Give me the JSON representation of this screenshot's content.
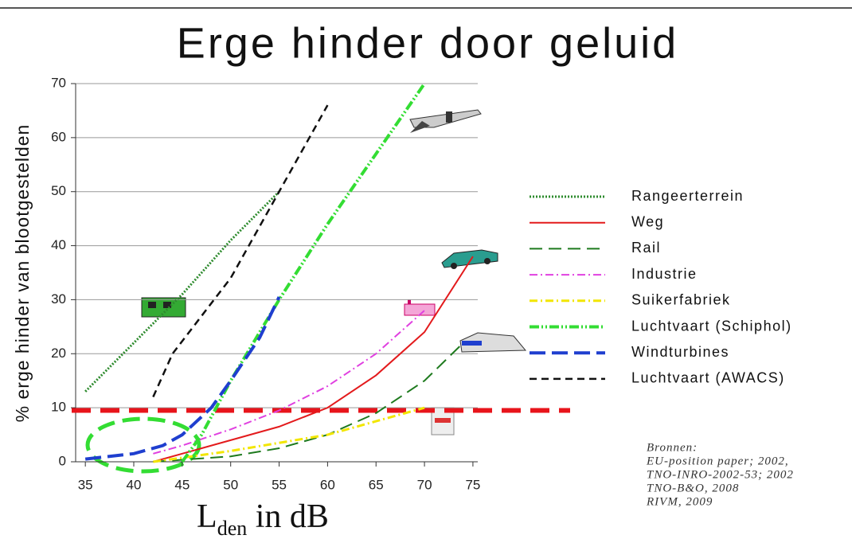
{
  "chart_data": {
    "type": "line",
    "title": "Erge hinder door geluid",
    "ylabel": "% erge hinder van blootgestelden",
    "xlabel": {
      "main": "L",
      "subscript": "den",
      "rest": " in dB"
    },
    "xlim": [
      34,
      75.5
    ],
    "ylim": [
      0,
      70
    ],
    "xticks": [
      35,
      40,
      45,
      50,
      55,
      60,
      65,
      70,
      75
    ],
    "yticks": [
      0,
      10,
      20,
      30,
      40,
      50,
      60,
      70
    ],
    "grid": true,
    "reference_line": {
      "value": 9.5,
      "color": "#e8141b"
    },
    "series": [
      {
        "name": "Rangeerterrein",
        "color": "#2e8b2e",
        "x": [
          35,
          40,
          45,
          50,
          55
        ],
        "values": [
          13,
          22,
          31,
          41,
          50
        ]
      },
      {
        "name": "Weg",
        "color": "#e31a1c",
        "x": [
          42,
          45,
          50,
          55,
          60,
          65,
          70,
          75
        ],
        "values": [
          0,
          1.5,
          4,
          6.5,
          10,
          16,
          24,
          38
        ]
      },
      {
        "name": "Rail",
        "color": "#1e7a1e",
        "x": [
          42,
          50,
          55,
          60,
          65,
          70,
          74
        ],
        "values": [
          0,
          1,
          2.5,
          5,
          9,
          15,
          22
        ]
      },
      {
        "name": "Industrie",
        "color": "#e040e0",
        "x": [
          42,
          45,
          50,
          55,
          60,
          65,
          70
        ],
        "values": [
          1.5,
          3,
          6,
          9.5,
          14,
          20,
          28
        ]
      },
      {
        "name": "Suikerfabriek",
        "color": "#f2e600",
        "x": [
          42,
          50,
          55,
          60,
          65,
          70
        ],
        "values": [
          0,
          2,
          3.5,
          5,
          7.5,
          10
        ]
      },
      {
        "name": "Luchtvaart (Schiphol)",
        "color": "#33dd33",
        "x": [
          45,
          47,
          50,
          55,
          60,
          65,
          70
        ],
        "values": [
          0,
          5,
          15,
          30,
          44,
          57,
          70
        ]
      },
      {
        "name": "Windturbines",
        "color": "#1f3fcf",
        "x": [
          35,
          40,
          43,
          45,
          48,
          50,
          53,
          55
        ],
        "values": [
          0.5,
          1.5,
          3,
          5,
          10,
          15,
          23,
          30.5
        ]
      },
      {
        "name": "Luchtvaart (AWACS)",
        "color": "#111111",
        "x": [
          42,
          44,
          50,
          55,
          60
        ],
        "values": [
          12,
          20,
          34,
          50,
          66
        ]
      }
    ],
    "sources": [
      "Bronnen:",
      "EU-position paper; 2002,",
      "TNO-INRO-2002-53; 2002",
      "TNO-B&O, 2008",
      "RIVM, 2009"
    ]
  }
}
